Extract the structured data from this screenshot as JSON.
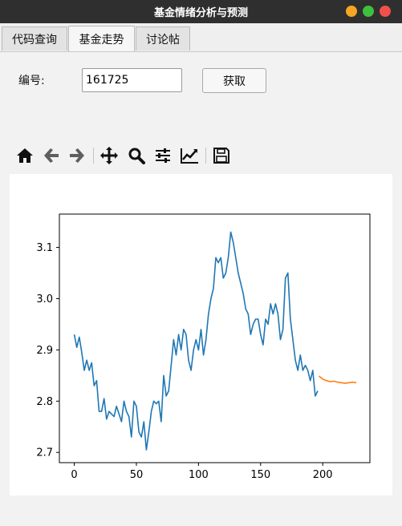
{
  "window": {
    "title": "基金情绪分析与预测",
    "buttons": [
      {
        "name": "minimize",
        "color": "#f6a623"
      },
      {
        "name": "maximize",
        "color": "#3dc13c"
      },
      {
        "name": "close",
        "color": "#f2504b"
      }
    ]
  },
  "tabs": [
    {
      "label": "代码查询",
      "active": false
    },
    {
      "label": "基金走势",
      "active": true
    },
    {
      "label": "讨论帖",
      "active": false
    }
  ],
  "form": {
    "code_label": "编号:",
    "code_value": "161725",
    "fetch_label": "获取"
  },
  "toolbar": {
    "icons": [
      "home-icon",
      "back-icon",
      "forward-icon",
      "pan-icon",
      "zoom-icon",
      "configure-subplots-icon",
      "edit-axis-icon",
      "save-icon"
    ]
  },
  "chart_data": {
    "type": "line",
    "title": "",
    "xlabel": "",
    "ylabel": "",
    "xlim": [
      -12,
      238
    ],
    "ylim": [
      2.68,
      3.165
    ],
    "xticks": [
      0,
      50,
      100,
      150,
      200
    ],
    "yticks": [
      2.7,
      2.8,
      2.9,
      3.0,
      3.1
    ],
    "grid": false,
    "series": [
      {
        "color": "#1f77b4",
        "x": [
          0,
          2,
          4,
          6,
          8,
          10,
          12,
          14,
          16,
          18,
          20,
          22,
          24,
          26,
          28,
          30,
          32,
          34,
          36,
          38,
          40,
          42,
          44,
          46,
          48,
          50,
          52,
          54,
          56,
          58,
          60,
          62,
          64,
          66,
          68,
          70,
          72,
          74,
          76,
          78,
          80,
          82,
          84,
          86,
          88,
          90,
          92,
          94,
          96,
          98,
          100,
          102,
          104,
          106,
          108,
          110,
          112,
          114,
          116,
          118,
          120,
          122,
          124,
          126,
          128,
          130,
          132,
          134,
          136,
          138,
          140,
          142,
          144,
          146,
          148,
          150,
          152,
          154,
          156,
          158,
          160,
          162,
          164,
          166,
          168,
          170,
          172,
          174,
          176,
          178,
          180,
          182,
          184,
          186,
          188,
          190,
          192,
          194,
          196
        ],
        "y": [
          2.93,
          2.905,
          2.925,
          2.895,
          2.86,
          2.88,
          2.86,
          2.875,
          2.83,
          2.84,
          2.78,
          2.78,
          2.805,
          2.765,
          2.78,
          2.775,
          2.77,
          2.79,
          2.775,
          2.76,
          2.8,
          2.78,
          2.77,
          2.73,
          2.8,
          2.79,
          2.74,
          2.73,
          2.76,
          2.705,
          2.74,
          2.78,
          2.8,
          2.795,
          2.8,
          2.76,
          2.85,
          2.81,
          2.82,
          2.87,
          2.92,
          2.89,
          2.93,
          2.9,
          2.94,
          2.93,
          2.88,
          2.86,
          2.9,
          2.92,
          2.9,
          2.94,
          2.89,
          2.92,
          2.97,
          3.0,
          3.02,
          3.08,
          3.07,
          3.08,
          3.04,
          3.05,
          3.08,
          3.13,
          3.11,
          3.08,
          3.05,
          3.03,
          3.01,
          2.98,
          2.97,
          2.93,
          2.95,
          2.96,
          2.96,
          2.93,
          2.91,
          2.96,
          2.95,
          2.99,
          2.97,
          2.99,
          2.97,
          2.92,
          2.94,
          3.04,
          3.05,
          2.96,
          2.92,
          2.88,
          2.86,
          2.89,
          2.86,
          2.87,
          2.86,
          2.84,
          2.86,
          2.81,
          2.82
        ]
      },
      {
        "color": "#ff7f0e",
        "x": [
          197,
          200,
          203,
          206,
          209,
          212,
          215,
          218,
          221,
          224,
          227
        ],
        "y": [
          2.849,
          2.843,
          2.84,
          2.838,
          2.839,
          2.837,
          2.836,
          2.835,
          2.836,
          2.837,
          2.836
        ]
      }
    ]
  }
}
